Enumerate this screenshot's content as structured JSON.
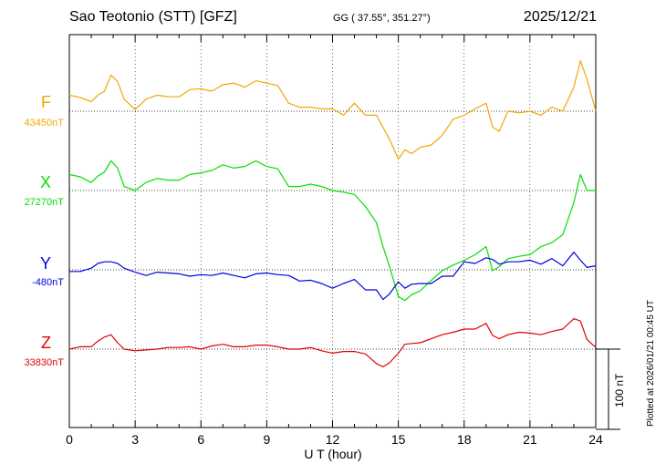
{
  "header": {
    "station": "Sao Teotonio (STT)  [GFZ]",
    "coords": "GG ( 37.55°, 351.27°)",
    "date": "2025/12/21"
  },
  "footer": {
    "plotted": "Plotted at 2026/01/21 00:45 UT"
  },
  "scale_bar": {
    "label": "100 nT",
    "value_nT": 100
  },
  "chart_data": {
    "type": "line",
    "xlabel": "U T (hour)",
    "xlim": [
      0,
      24
    ],
    "xticks": [
      0,
      3,
      6,
      9,
      12,
      15,
      18,
      21,
      24
    ],
    "grid": true,
    "series": [
      {
        "name": "F",
        "baseline_label": "43450nT",
        "baseline_nT": 43450,
        "color": "#f0a800",
        "x": [
          0,
          0.5,
          1,
          1.3,
          1.6,
          1.9,
          2.2,
          2.5,
          3,
          3.5,
          4,
          4.5,
          5,
          5.5,
          6,
          6.5,
          7,
          7.5,
          8,
          8.5,
          9,
          9.5,
          10,
          10.5,
          11,
          11.5,
          12,
          12.5,
          13,
          13.5,
          14,
          14.3,
          14.6,
          15,
          15.3,
          15.6,
          16,
          16.5,
          17,
          17.5,
          18,
          18.5,
          19,
          19.3,
          19.6,
          20,
          20.5,
          21,
          21.5,
          22,
          22.5,
          23,
          23.3,
          23.6,
          24
        ],
        "y": [
          43470,
          43467,
          43462,
          43470,
          43475,
          43495,
          43487,
          43465,
          43452,
          43465,
          43470,
          43468,
          43468,
          43477,
          43478,
          43475,
          43483,
          43485,
          43480,
          43488,
          43485,
          43482,
          43460,
          43455,
          43455,
          43453,
          43453,
          43445,
          43460,
          43445,
          43445,
          43430,
          43415,
          43390,
          43402,
          43397,
          43405,
          43408,
          43420,
          43440,
          43445,
          43453,
          43460,
          43430,
          43425,
          43450,
          43448,
          43450,
          43445,
          43455,
          43450,
          43480,
          43513,
          43490,
          43450
        ]
      },
      {
        "name": "X",
        "baseline_label": "27270nT",
        "baseline_nT": 27270,
        "color": "#00e000",
        "x": [
          0,
          0.5,
          1,
          1.3,
          1.6,
          1.9,
          2.2,
          2.5,
          3,
          3.5,
          4,
          4.5,
          5,
          5.5,
          6,
          6.5,
          7,
          7.5,
          8,
          8.5,
          9,
          9.5,
          10,
          10.5,
          11,
          11.5,
          12,
          12.5,
          13,
          13.5,
          14,
          14.3,
          14.6,
          15,
          15.3,
          15.6,
          16,
          16.5,
          17,
          17.5,
          18,
          18.5,
          19,
          19.3,
          19.6,
          20,
          20.5,
          21,
          21.5,
          22,
          22.5,
          23,
          23.3,
          23.6,
          24
        ],
        "y": [
          27290,
          27287,
          27280,
          27288,
          27293,
          27307,
          27298,
          27275,
          27270,
          27280,
          27285,
          27283,
          27283,
          27290,
          27292,
          27295,
          27302,
          27298,
          27300,
          27307,
          27300,
          27297,
          27275,
          27275,
          27278,
          27275,
          27270,
          27268,
          27265,
          27250,
          27230,
          27200,
          27175,
          27138,
          27133,
          27140,
          27145,
          27158,
          27170,
          27177,
          27183,
          27190,
          27200,
          27170,
          27175,
          27185,
          27188,
          27190,
          27200,
          27205,
          27215,
          27255,
          27290,
          27270,
          27270
        ]
      },
      {
        "name": "Y",
        "baseline_label": "-480nT",
        "baseline_nT": -480,
        "color": "#0000e0",
        "x": [
          0,
          0.5,
          1,
          1.3,
          1.6,
          1.9,
          2.2,
          2.5,
          3,
          3.5,
          4,
          4.5,
          5,
          5.5,
          6,
          6.5,
          7,
          7.5,
          8,
          8.5,
          9,
          9.5,
          10,
          10.5,
          11,
          11.5,
          12,
          12.5,
          13,
          13.5,
          14,
          14.3,
          14.6,
          15,
          15.3,
          15.6,
          16,
          16.5,
          17,
          17.5,
          18,
          18.5,
          19,
          19.3,
          19.6,
          20,
          20.5,
          21,
          21.5,
          22,
          22.5,
          23,
          23.3,
          23.6,
          24
        ],
        "y": [
          -482,
          -482,
          -478,
          -472,
          -470,
          -470,
          -472,
          -478,
          -483,
          -487,
          -483,
          -484,
          -485,
          -488,
          -486,
          -487,
          -484,
          -487,
          -490,
          -485,
          -484,
          -486,
          -487,
          -494,
          -493,
          -497,
          -503,
          -497,
          -492,
          -505,
          -505,
          -517,
          -510,
          -495,
          -503,
          -498,
          -497,
          -497,
          -488,
          -488,
          -470,
          -472,
          -465,
          -467,
          -473,
          -470,
          -470,
          -468,
          -473,
          -466,
          -475,
          -458,
          -468,
          -477,
          -475
        ]
      },
      {
        "name": "Z",
        "baseline_label": "33830nT",
        "baseline_nT": 33830,
        "color": "#e00000",
        "x": [
          0,
          0.5,
          1,
          1.3,
          1.6,
          1.9,
          2.2,
          2.5,
          3,
          3.5,
          4,
          4.5,
          5,
          5.5,
          6,
          6.5,
          7,
          7.5,
          8,
          8.5,
          9,
          9.5,
          10,
          10.5,
          11,
          11.5,
          12,
          12.5,
          13,
          13.5,
          14,
          14.3,
          14.6,
          15,
          15.3,
          15.6,
          16,
          16.5,
          17,
          17.5,
          18,
          18.5,
          19,
          19.3,
          19.6,
          20,
          20.5,
          21,
          21.5,
          22,
          22.5,
          23,
          23.3,
          23.6,
          24
        ],
        "y": [
          33830,
          33833,
          33833,
          33840,
          33845,
          33848,
          33838,
          33830,
          33828,
          33829,
          33830,
          33832,
          33832,
          33833,
          33830,
          33834,
          33836,
          33833,
          33833,
          33835,
          33835,
          33833,
          33830,
          33830,
          33832,
          33828,
          33825,
          33827,
          33827,
          33824,
          33812,
          33808,
          33813,
          33825,
          33836,
          33837,
          33838,
          33843,
          33848,
          33851,
          33855,
          33855,
          33862,
          33847,
          33843,
          33848,
          33851,
          33850,
          33848,
          33852,
          33855,
          33868,
          33865,
          33842,
          33832
        ]
      }
    ]
  }
}
